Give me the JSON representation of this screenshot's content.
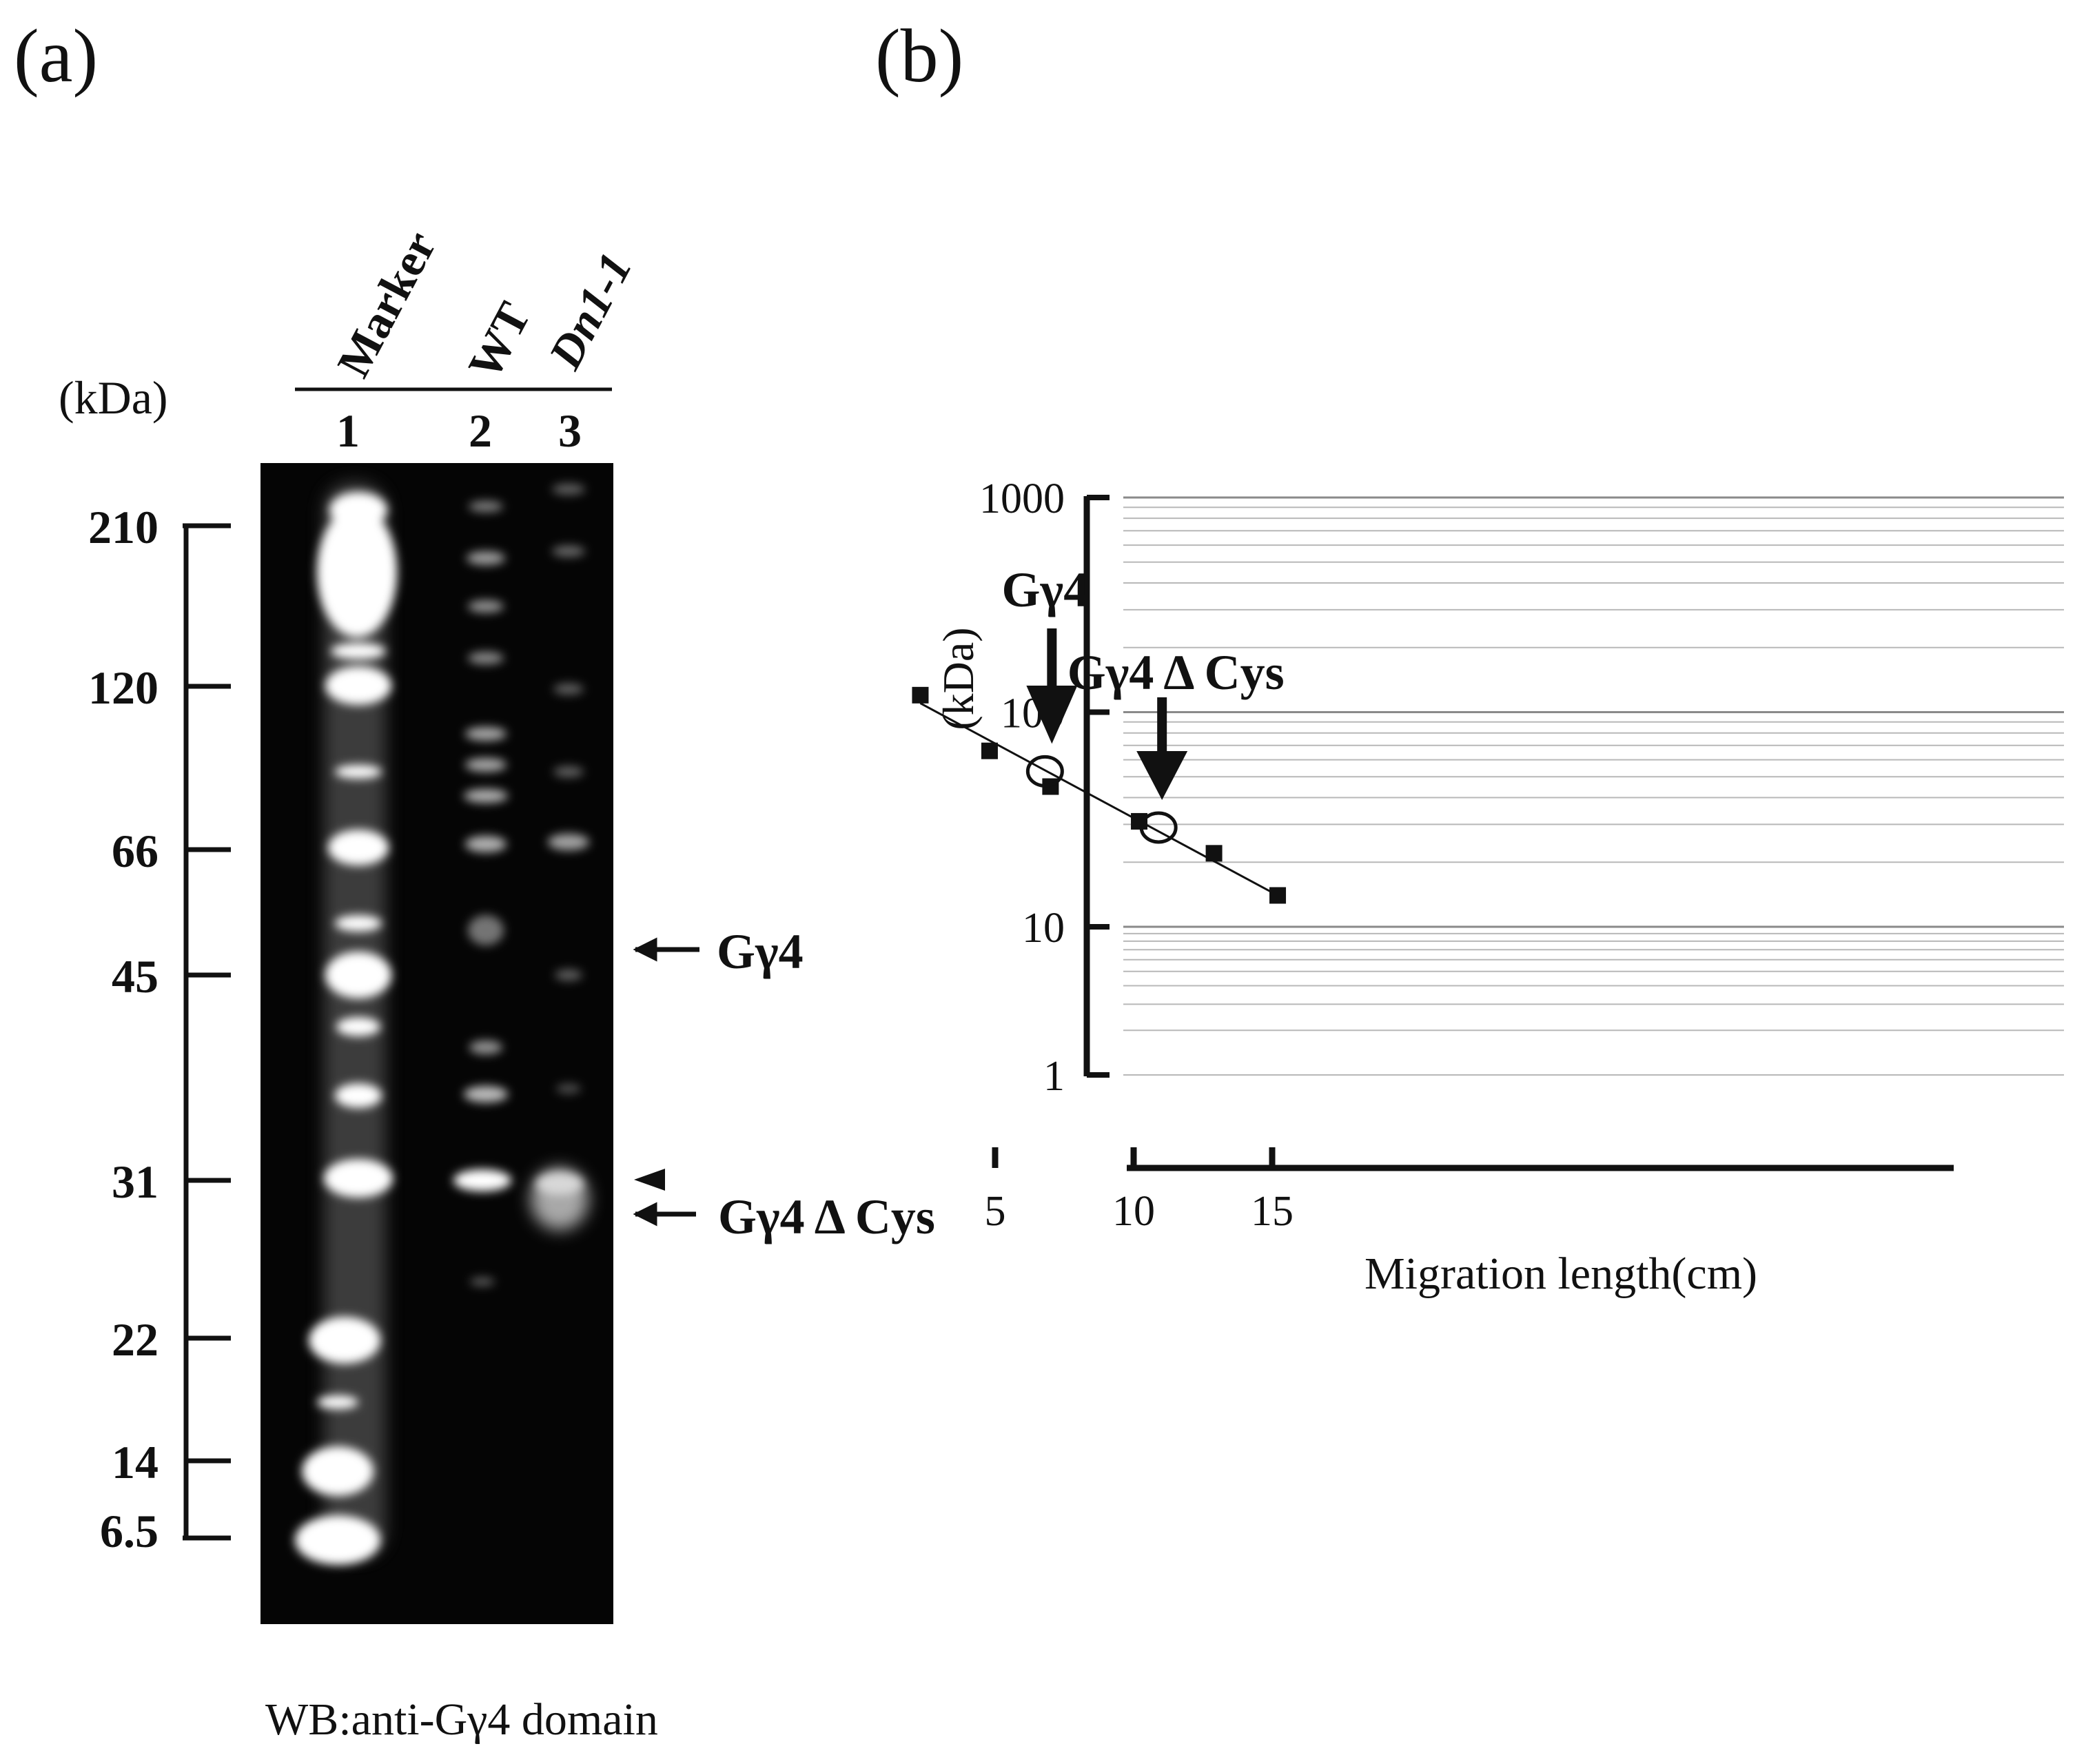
{
  "panel_a": {
    "label": "(a)",
    "unit": "(kDa)",
    "lane_names": [
      "Marker",
      "WT",
      "Dn1-1"
    ],
    "lane_numbers": [
      "1",
      "2",
      "3"
    ],
    "marker_sizes": [
      "210",
      "120",
      "66",
      "45",
      "31",
      "22",
      "14",
      "6.5"
    ],
    "band_labels": {
      "g4": "Gγ4",
      "g4dcys": "Gγ4 Δ Cys"
    },
    "footer": "WB:anti-Gγ4 domain"
  },
  "panel_b": {
    "label": "(b)",
    "annotations": {
      "g4": "Gγ4",
      "g4dcys": "Gγ4 Δ Cys"
    }
  },
  "chart_data": {
    "type": "scatter",
    "xlabel": "Migration length(cm)",
    "ylabel": "(kDa)",
    "y_scale": "log",
    "ylim": [
      1,
      1000
    ],
    "xlim": [
      0,
      15
    ],
    "x_ticks": [
      5,
      10,
      15
    ],
    "y_ticks": [
      1,
      10,
      100,
      1000
    ],
    "grid": "horizontal",
    "series": [
      {
        "marker": "square",
        "x": [
          2.3,
          4.8,
          7.0,
          10.2,
          12.9,
          15.2
        ],
        "y": [
          120,
          66,
          45,
          31,
          22,
          14
        ]
      },
      {
        "marker": "open-circle",
        "x": [
          6.8,
          10.9
        ],
        "y": [
          53,
          29
        ]
      }
    ],
    "fit_line": {
      "x": [
        2.3,
        15.2
      ],
      "y": [
        110,
        14
      ]
    },
    "annotations": [
      {
        "text": "Gγ4",
        "x": 6.8,
        "y": 53
      },
      {
        "text": "Gγ4 Δ Cys",
        "x": 10.9,
        "y": 29
      }
    ]
  }
}
